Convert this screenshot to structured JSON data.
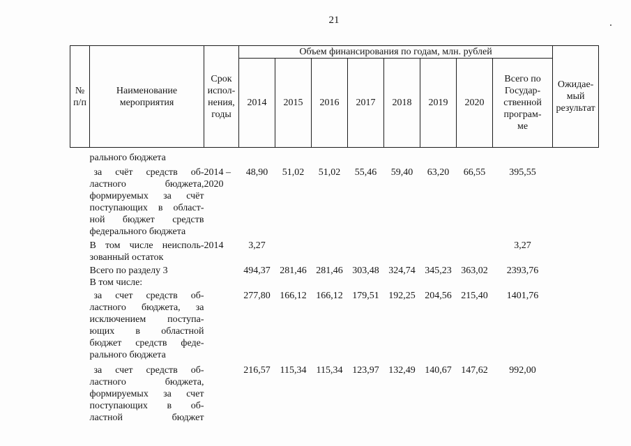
{
  "page": {
    "number": "21",
    "stray_mark": "."
  },
  "table": {
    "header": {
      "col_num": "№\nп/п",
      "col_name": "Наименование\nмероприятия",
      "col_term": "Срок\nиспол-\nнения,\nгоды",
      "financing_span": "Объем финансирования по годам, млн. рублей",
      "years": [
        "2014",
        "2015",
        "2016",
        "2017",
        "2018",
        "2019",
        "2020"
      ],
      "col_total": "Всего по\nГосудар-\nственной\nпрограм-\nме",
      "col_expected": "Ожидае-\nмый\nрезультат"
    },
    "rows": [
      {
        "name_lines": [
          "рального бюджета"
        ],
        "term": "",
        "values": [
          "",
          "",
          "",
          "",
          "",
          "",
          ""
        ],
        "total": ""
      },
      {
        "name_lines": [
          "за счёт средств об-",
          "ластного бюджета,",
          "формируемых за счёт",
          "поступающих в област-",
          "ной бюджет средств",
          "федерального бюджета"
        ],
        "term": "2014 – 2020",
        "values": [
          "48,90",
          "51,02",
          "51,02",
          "55,46",
          "59,40",
          "63,20",
          "66,55"
        ],
        "total": "395,55"
      },
      {
        "name_lines": [
          "В том числе неисполь-",
          "зованный остаток"
        ],
        "term": "2014",
        "values": [
          "3,27",
          "",
          "",
          "",
          "",
          "",
          ""
        ],
        "total": "3,27"
      },
      {
        "name_lines": [
          "Всего по разделу 3"
        ],
        "term": "",
        "values": [
          "494,37",
          "281,46",
          "281,46",
          "303,48",
          "324,74",
          "345,23",
          "363,02"
        ],
        "total": "2393,76"
      },
      {
        "name_lines": [
          "В том числе:"
        ],
        "term": "",
        "values": [
          "",
          "",
          "",
          "",
          "",
          "",
          ""
        ],
        "total": ""
      },
      {
        "name_lines": [
          "за счет средств об-",
          "ластного бюджета, за",
          "исключением поступа-",
          "ющих в областной",
          "бюджет средств феде-",
          "рального бюджета"
        ],
        "term": "",
        "values": [
          "277,80",
          "166,12",
          "166,12",
          "179,51",
          "192,25",
          "204,56",
          "215,40"
        ],
        "total": "1401,76"
      },
      {
        "name_lines": [
          "за счет средств об-",
          "ластного бюджета,",
          "формируемых за счет",
          "поступающих в об-",
          "ластной бюджет"
        ],
        "term": "",
        "values": [
          "216,57",
          "115,34",
          "115,34",
          "123,97",
          "132,49",
          "140,67",
          "147,62"
        ],
        "total": "992,00"
      }
    ]
  }
}
